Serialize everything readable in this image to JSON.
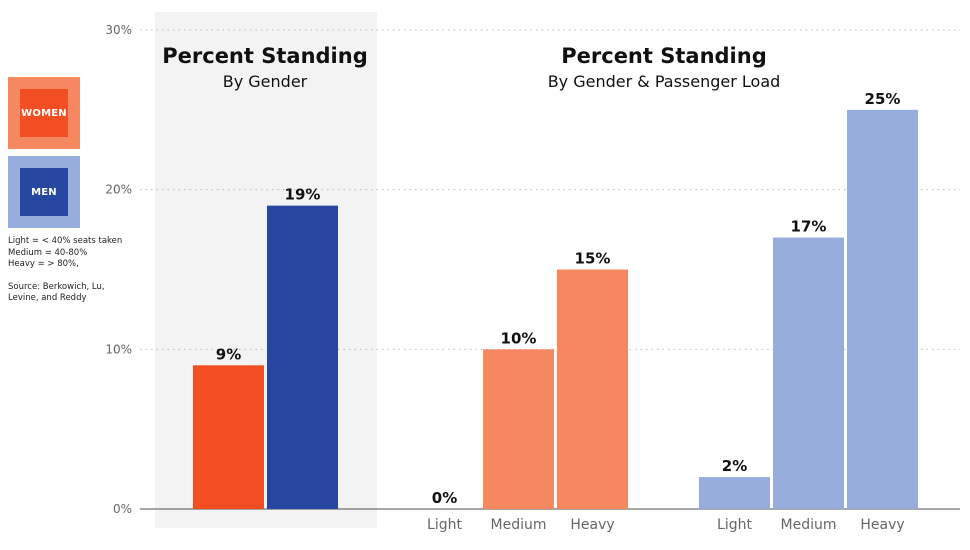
{
  "legend": {
    "women": {
      "label": "WOMEN",
      "outer": "#f58860",
      "inner": "#f24e24"
    },
    "men": {
      "label": "MEN",
      "outer": "#97aedd",
      "inner": "#2746a0"
    }
  },
  "notes": {
    "lines": [
      "Light = < 40% seats taken",
      "Medium = 40-80%",
      "Heavy = > 80%,"
    ],
    "source": [
      "Source: Berkowich, Lu,",
      "Levine, and Reddy"
    ]
  },
  "colors": {
    "women": "#f24e24",
    "men": "#2746a0",
    "women_light": "#f58860",
    "men_light": "#97aedd",
    "panel": "#f2f3f2",
    "grid": "#bbbbbb",
    "axis": "#888888"
  },
  "chart_data": [
    {
      "type": "bar",
      "title": "Percent Standing",
      "subtitle": "By Gender",
      "categories": [
        "Women",
        "Men"
      ],
      "values": [
        9,
        19
      ],
      "value_labels": [
        "9%",
        "19%"
      ],
      "ylim": [
        0,
        30
      ],
      "yticks": [
        0,
        10,
        20,
        30
      ],
      "ytick_labels": [
        "0%",
        "10%",
        "20%",
        "30%"
      ],
      "grid": true
    },
    {
      "type": "bar",
      "title": "Percent Standing",
      "subtitle": "By Gender & Passenger Load",
      "categories": [
        "Light",
        "Medium",
        "Heavy"
      ],
      "series": [
        {
          "name": "WOMEN",
          "values": [
            0,
            10,
            15
          ],
          "value_labels": [
            "0%",
            "10%",
            "15%"
          ]
        },
        {
          "name": "MEN",
          "values": [
            2,
            17,
            25
          ],
          "value_labels": [
            "2%",
            "17%",
            "25%"
          ]
        }
      ],
      "ylim": [
        0,
        30
      ],
      "grid": true
    }
  ]
}
